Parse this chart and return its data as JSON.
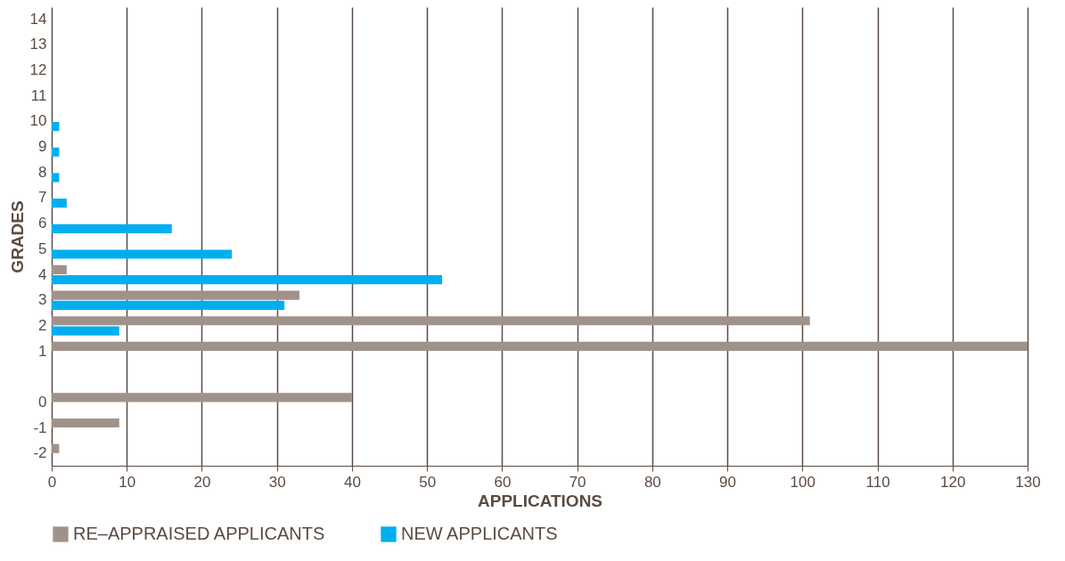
{
  "chart_data": {
    "type": "bar",
    "orientation": "horizontal",
    "categories": [
      "14",
      "13",
      "12",
      "11",
      "10",
      "9",
      "8",
      "7",
      "6",
      "5",
      "4",
      "3",
      "2",
      "1",
      null,
      "0",
      "-1",
      "-2"
    ],
    "series": [
      {
        "name": "RE–APPRAISED APPLICANTS",
        "color": "#a09288",
        "values": [
          null,
          null,
          null,
          null,
          null,
          null,
          null,
          null,
          null,
          null,
          2,
          33,
          101,
          130,
          null,
          40,
          9,
          1
        ]
      },
      {
        "name": "NEW APPLICANTS",
        "color": "#00aeef",
        "values": [
          null,
          null,
          null,
          null,
          1,
          1,
          1,
          2,
          16,
          24,
          52,
          31,
          9,
          null,
          null,
          null,
          null,
          null
        ]
      }
    ],
    "xlim": [
      0,
      130
    ],
    "xticks": [
      0,
      10,
      20,
      30,
      40,
      50,
      60,
      70,
      80,
      90,
      100,
      110,
      120,
      130
    ],
    "xlabel": "APPLICATIONS",
    "ylabel": "GRADES",
    "grid": "x",
    "legend": "bottom left"
  }
}
